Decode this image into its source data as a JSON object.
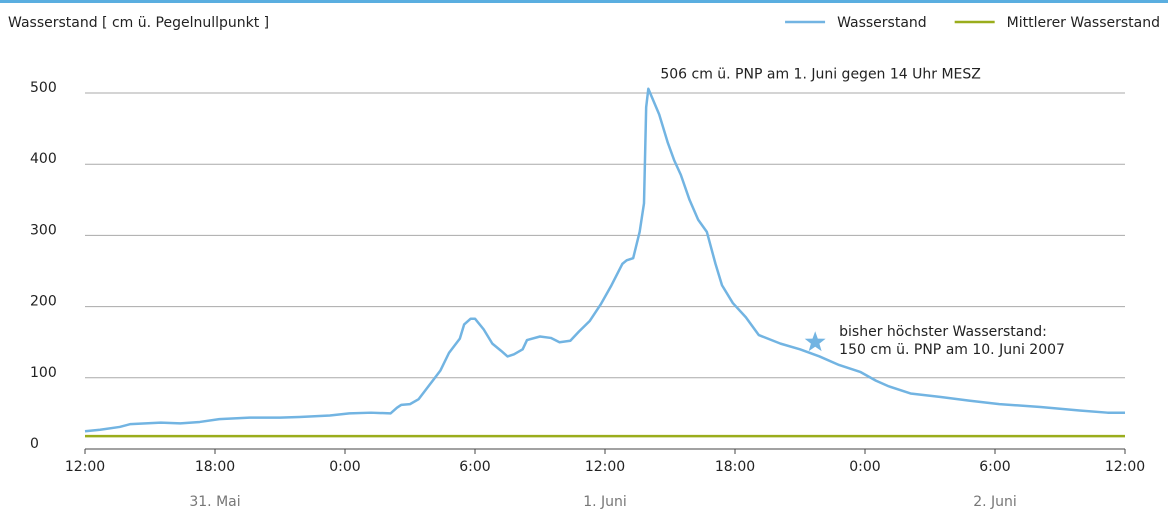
{
  "chart_data": {
    "type": "line",
    "title": "Wasserstand [ cm ü. Pegelnullpunkt ]",
    "x": [
      0,
      0.7,
      1.6,
      2.1,
      2.8,
      3.5,
      4.4,
      5.3,
      6.2,
      7.6,
      9.0,
      9.9,
      11.3,
      12.2,
      13.2,
      14.1,
      14.4,
      14.6,
      15.0,
      15.4,
      15.9,
      16.4,
      16.8,
      17.3,
      17.5,
      17.8,
      18.0,
      18.4,
      18.8,
      19.2,
      19.5,
      19.8,
      20.2,
      20.4,
      21.0,
      21.5,
      21.9,
      22.4,
      22.8,
      23.3,
      23.8,
      24.3,
      24.8,
      25.0,
      25.3,
      25.6,
      25.8,
      25.9,
      26.0,
      26.5,
      26.9,
      27.2,
      27.5,
      27.9,
      28.3,
      28.7,
      29.1,
      29.4,
      29.9,
      30.5,
      31.1,
      32.1,
      33.0,
      33.9,
      34.8,
      35.8,
      36.5,
      37.1,
      38.1,
      39.5,
      40.8,
      42.2,
      44.1,
      45.9,
      47.2,
      48
    ],
    "series": [
      {
        "name": "Wasserstand",
        "color": "#72b4e2",
        "values": [
          25,
          27,
          31,
          35,
          36,
          37,
          36,
          38,
          42,
          44,
          44,
          45,
          47,
          50,
          51,
          50,
          58,
          62,
          63,
          70,
          90,
          110,
          135,
          155,
          175,
          183,
          183,
          168,
          148,
          138,
          130,
          133,
          140,
          153,
          158,
          156,
          150,
          152,
          165,
          180,
          203,
          230,
          260,
          265,
          268,
          305,
          345,
          480,
          506,
          470,
          430,
          405,
          385,
          350,
          322,
          305,
          260,
          230,
          205,
          185,
          160,
          148,
          140,
          130,
          118,
          108,
          96,
          88,
          78,
          73,
          68,
          63,
          59,
          54,
          51,
          51
        ]
      },
      {
        "name": "Mittlerer Wasserstand",
        "color": "#9aad1c",
        "x": [
          0,
          48
        ],
        "values": [
          18,
          18
        ]
      }
    ],
    "xlim": [
      0,
      48
    ],
    "ylim": [
      0,
      500
    ],
    "xticks": [
      {
        "value": 0,
        "label": "12:00"
      },
      {
        "value": 6,
        "label": "18:00"
      },
      {
        "value": 12,
        "label": "0:00"
      },
      {
        "value": 18,
        "label": "6:00"
      },
      {
        "value": 24,
        "label": "12:00"
      },
      {
        "value": 30,
        "label": "18:00"
      },
      {
        "value": 36,
        "label": "0:00"
      },
      {
        "value": 42,
        "label": "6:00"
      },
      {
        "value": 48,
        "label": "12:00"
      }
    ],
    "date_labels": [
      {
        "value": 6,
        "label": "31. Mai"
      },
      {
        "value": 24,
        "label": "1. Juni"
      },
      {
        "value": 42,
        "label": "2. Juni"
      }
    ],
    "yticks": [
      0,
      100,
      200,
      300,
      400,
      500
    ],
    "grid": true,
    "legend": "top-right",
    "peak_annotation": "506 cm ü. PNP am 1. Juni gegen 14 Uhr MESZ",
    "record": {
      "x": 33.7,
      "value": 150,
      "color": "#72b4e2",
      "lines": [
        "bisher höchster Wasserstand:",
        "150 cm ü. PNP am 10. Juni 2007"
      ]
    }
  }
}
